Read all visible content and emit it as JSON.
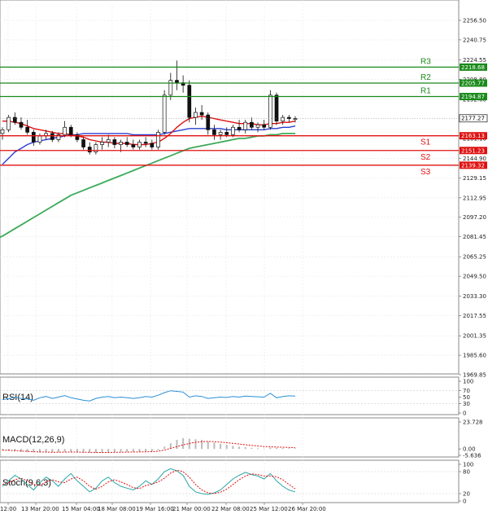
{
  "chart_data": [
    {
      "type": "candlestick",
      "x_ticks": [
        "12:00",
        "13 Mar 20:00",
        "15 Mar 04:00",
        "18 Mar 08:00",
        "19 Mar 16:00",
        "21 Mar 00:00",
        "22 Mar 08:00",
        "25 Mar 12:00",
        "26 Mar 20:00"
      ],
      "y_ticks": [
        "2256.50",
        "2240.75",
        "2224.55",
        "2208.80",
        "2192.60",
        "2177.27",
        "2161.10",
        "2144.90",
        "2129.15",
        "2112.95",
        "2097.20",
        "2081.45",
        "2065.25",
        "2049.50",
        "2033.30",
        "2017.55",
        "2001.35",
        "1985.60",
        "1969.85"
      ],
      "ylim": [
        1969.85,
        2256.5
      ],
      "last_price": "2177.27",
      "levels": [
        {
          "name": "R3",
          "value": 2218.68,
          "label": "2218.68",
          "color": "#1a8a1a"
        },
        {
          "name": "R2",
          "value": 2205.77,
          "label": "2205.77",
          "color": "#1a8a1a"
        },
        {
          "name": "R1",
          "value": 2194.87,
          "label": "2194.87",
          "color": "#1a8a1a"
        },
        {
          "name": "S1",
          "value": 2163.13,
          "label": "2163.13",
          "color": "#e01010"
        },
        {
          "name": "S2",
          "value": 2151.23,
          "label": "2151.23",
          "color": "#e01010"
        },
        {
          "name": "S3",
          "value": 2139.32,
          "label": "2139.32",
          "color": "#e01010"
        }
      ],
      "candles": [
        [
          2165,
          2170,
          2160,
          2168
        ],
        [
          2168,
          2180,
          2166,
          2178
        ],
        [
          2178,
          2182,
          2172,
          2174
        ],
        [
          2174,
          2178,
          2168,
          2170
        ],
        [
          2170,
          2176,
          2164,
          2166
        ],
        [
          2166,
          2168,
          2155,
          2158
        ],
        [
          2158,
          2165,
          2156,
          2163
        ],
        [
          2163,
          2168,
          2160,
          2165
        ],
        [
          2165,
          2167,
          2158,
          2160
        ],
        [
          2160,
          2166,
          2158,
          2164
        ],
        [
          2164,
          2175,
          2162,
          2170
        ],
        [
          2170,
          2172,
          2162,
          2164
        ],
        [
          2164,
          2166,
          2158,
          2160
        ],
        [
          2160,
          2162,
          2152,
          2154
        ],
        [
          2154,
          2158,
          2148,
          2150
        ],
        [
          2150,
          2158,
          2148,
          2156
        ],
        [
          2156,
          2162,
          2152,
          2158
        ],
        [
          2158,
          2164,
          2154,
          2160
        ],
        [
          2160,
          2162,
          2153,
          2156
        ],
        [
          2156,
          2160,
          2150,
          2158
        ],
        [
          2158,
          2162,
          2154,
          2156
        ],
        [
          2156,
          2160,
          2152,
          2154
        ],
        [
          2154,
          2160,
          2152,
          2158
        ],
        [
          2158,
          2162,
          2154,
          2157
        ],
        [
          2157,
          2160,
          2152,
          2154
        ],
        [
          2154,
          2168,
          2152,
          2166
        ],
        [
          2166,
          2200,
          2164,
          2196
        ],
        [
          2196,
          2214,
          2192,
          2208
        ],
        [
          2208,
          2224,
          2200,
          2206
        ],
        [
          2206,
          2212,
          2198,
          2204
        ],
        [
          2204,
          2208,
          2174,
          2178
        ],
        [
          2178,
          2186,
          2172,
          2182
        ],
        [
          2182,
          2188,
          2176,
          2180
        ],
        [
          2180,
          2182,
          2164,
          2168
        ],
        [
          2168,
          2172,
          2160,
          2164
        ],
        [
          2164,
          2168,
          2160,
          2166
        ],
        [
          2166,
          2170,
          2162,
          2164
        ],
        [
          2164,
          2172,
          2162,
          2170
        ],
        [
          2170,
          2176,
          2166,
          2168
        ],
        [
          2168,
          2176,
          2165,
          2174
        ],
        [
          2174,
          2178,
          2168,
          2170
        ],
        [
          2170,
          2174,
          2166,
          2172
        ],
        [
          2172,
          2176,
          2168,
          2170
        ],
        [
          2170,
          2200,
          2168,
          2196
        ],
        [
          2196,
          2198,
          2172,
          2175
        ],
        [
          2175,
          2180,
          2172,
          2178
        ],
        [
          2178,
          2180,
          2174,
          2177
        ],
        [
          2177,
          2179,
          2174,
          2177
        ]
      ],
      "ma_fast": [
        2175,
        2175,
        2174,
        2173,
        2171,
        2169,
        2168,
        2167,
        2166,
        2165,
        2165,
        2164,
        2163,
        2162,
        2160,
        2159,
        2158,
        2158,
        2157,
        2157,
        2157,
        2156,
        2156,
        2156,
        2157,
        2158,
        2161,
        2165,
        2170,
        2174,
        2177,
        2178,
        2179,
        2178,
        2177,
        2176,
        2175,
        2174,
        2173,
        2173,
        2173,
        2172,
        2172,
        2173,
        2173,
        2174,
        2174,
        2175
      ],
      "ma_mid": [
        2140,
        2145,
        2150,
        2153,
        2156,
        2158,
        2159,
        2160,
        2161,
        2162,
        2163,
        2164,
        2164,
        2165,
        2165,
        2165,
        2165,
        2165,
        2165,
        2165,
        2165,
        2164,
        2164,
        2164,
        2164,
        2164,
        2165,
        2166,
        2167,
        2168,
        2169,
        2169,
        2169,
        2169,
        2169,
        2169,
        2168,
        2168,
        2168,
        2168,
        2168,
        2168,
        2168,
        2169,
        2169,
        2170,
        2170,
        2171
      ],
      "ma_slow": [
        2082,
        2085,
        2088,
        2091,
        2094,
        2097,
        2100,
        2103,
        2106,
        2109,
        2112,
        2115,
        2117,
        2119,
        2121,
        2123,
        2125,
        2127,
        2129,
        2131,
        2133,
        2135,
        2137,
        2139,
        2141,
        2143,
        2145,
        2147,
        2149,
        2151,
        2153,
        2154,
        2155,
        2156,
        2157,
        2158,
        2159,
        2160,
        2161,
        2161,
        2162,
        2163,
        2163,
        2164,
        2164,
        2165,
        2165,
        2165
      ],
      "ma_colors": {
        "fast": "#e01010",
        "mid": "#2a3fd0",
        "slow": "#3daa5a"
      }
    },
    {
      "type": "line",
      "name": "RSI(14)",
      "label": "RSI(14)",
      "y_ticks": [
        "100",
        "70",
        "50",
        "30",
        "0"
      ],
      "ylim": [
        0,
        100
      ],
      "values": [
        42,
        45,
        50,
        46,
        44,
        40,
        48,
        52,
        46,
        50,
        55,
        48,
        44,
        40,
        38,
        46,
        50,
        52,
        48,
        50,
        48,
        46,
        48,
        52,
        50,
        56,
        64,
        70,
        68,
        66,
        50,
        54,
        52,
        46,
        48,
        50,
        49,
        52,
        50,
        53,
        52,
        51,
        50,
        62,
        48,
        52,
        54,
        53
      ],
      "color": "#2a8fd6"
    },
    {
      "type": "bar",
      "name": "MACD(12,26,9)",
      "label": "MACD(12,26,9)",
      "y_ticks": [
        "23.728",
        "0.00",
        "-5.636"
      ],
      "ylim": [
        -5.636,
        23.728
      ],
      "histogram": [
        -1,
        -1.5,
        -2,
        -2.5,
        -2.8,
        -3,
        -3.2,
        -3.1,
        -3,
        -2.8,
        -2.5,
        -2.6,
        -2.8,
        -3,
        -3.2,
        -3.4,
        -3.2,
        -3,
        -2.8,
        -2.6,
        -2.5,
        -2.4,
        -2.3,
        -2.2,
        -2,
        -1,
        2,
        5,
        8,
        9.5,
        9,
        8.5,
        8,
        6.5,
        5.5,
        4.5,
        3.5,
        2.8,
        2,
        1.5,
        1,
        0.6,
        0.3,
        1.2,
        1,
        0.8,
        0.6,
        0.5
      ],
      "signal": [
        -1,
        -1.2,
        -1.5,
        -1.8,
        -2.1,
        -2.4,
        -2.6,
        -2.8,
        -2.9,
        -2.9,
        -2.8,
        -2.8,
        -2.8,
        -2.9,
        -3,
        -3.1,
        -3.1,
        -3.1,
        -3,
        -2.9,
        -2.8,
        -2.7,
        -2.6,
        -2.5,
        -2.4,
        -2,
        -1,
        0.5,
        2,
        3.5,
        4.8,
        5.8,
        6.4,
        6.6,
        6.4,
        6,
        5.5,
        4.9,
        4.3,
        3.7,
        3.1,
        2.6,
        2.1,
        1.9,
        1.7,
        1.5,
        1.3,
        1.1
      ],
      "bar_color": "#bbbbbb",
      "signal_color": "#e01010"
    },
    {
      "type": "line",
      "name": "Stoch(9,6,3)",
      "label": "Stoch(9,6,3)",
      "y_ticks": [
        "100",
        "80",
        "20",
        "0"
      ],
      "ylim": [
        0,
        100
      ],
      "main": [
        40,
        55,
        70,
        60,
        45,
        30,
        50,
        65,
        55,
        40,
        60,
        75,
        55,
        40,
        25,
        35,
        55,
        65,
        50,
        40,
        35,
        30,
        40,
        55,
        45,
        60,
        80,
        88,
        82,
        70,
        40,
        25,
        20,
        18,
        22,
        30,
        45,
        60,
        70,
        78,
        72,
        68,
        60,
        75,
        55,
        40,
        30,
        25
      ],
      "signal": [
        45,
        50,
        58,
        62,
        55,
        45,
        42,
        52,
        58,
        52,
        50,
        60,
        65,
        55,
        40,
        32,
        40,
        52,
        58,
        52,
        45,
        36,
        34,
        42,
        46,
        52,
        62,
        76,
        84,
        80,
        65,
        45,
        30,
        22,
        20,
        24,
        32,
        45,
        58,
        68,
        74,
        72,
        68,
        68,
        66,
        58,
        45,
        33
      ],
      "main_color": "#2aa6a6",
      "signal_color": "#e01010"
    }
  ]
}
